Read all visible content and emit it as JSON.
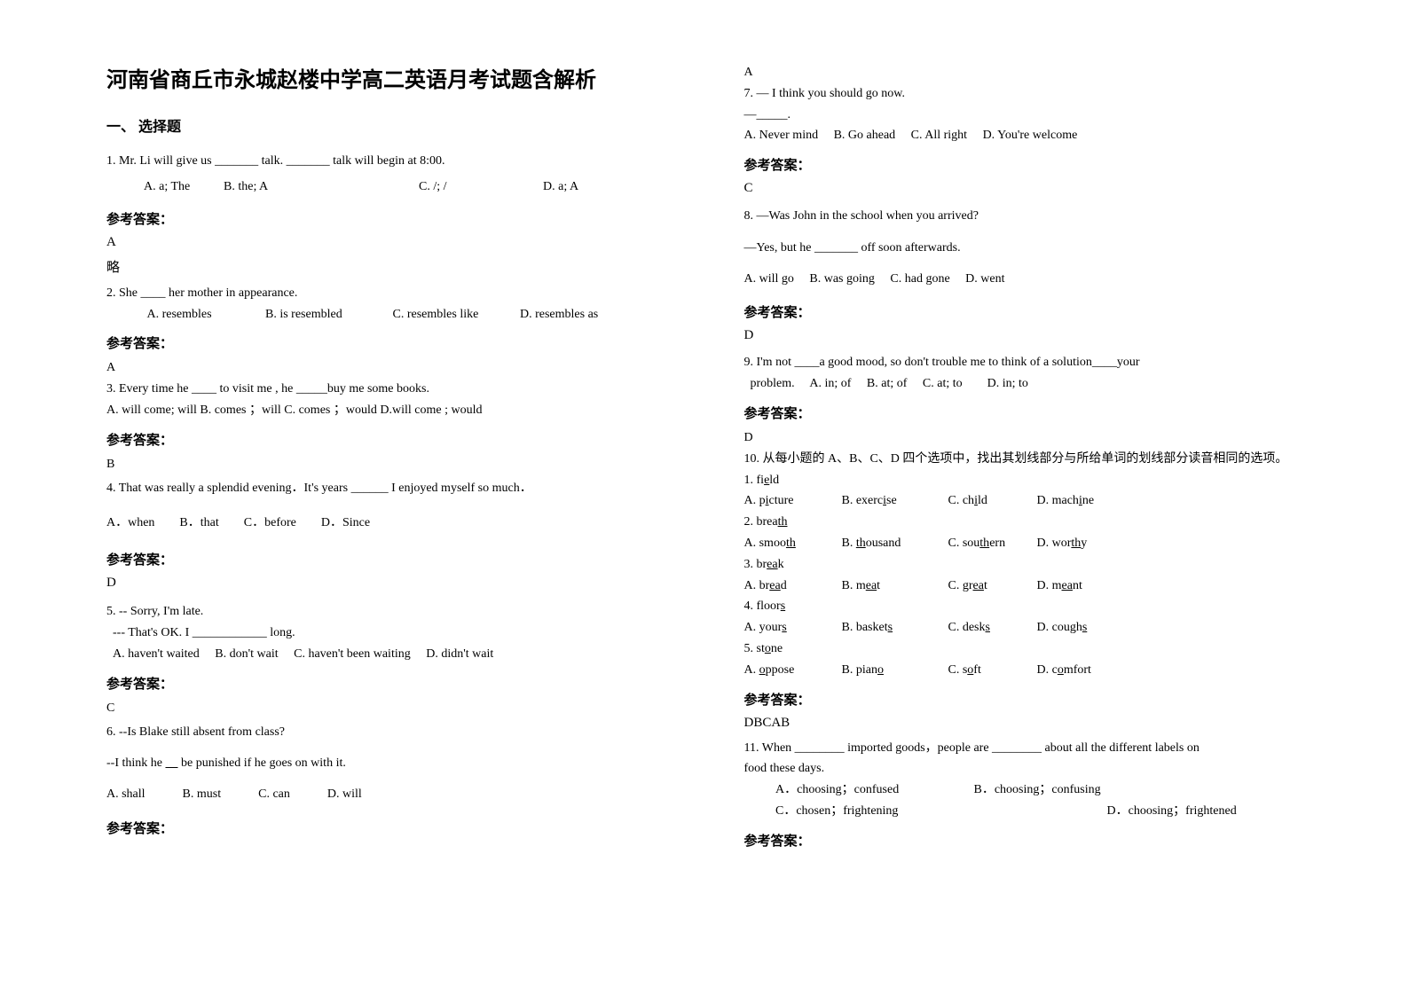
{
  "title": "河南省商丘市永城赵楼中学高二英语月考试题含解析",
  "sectionHead": "一、 选择题",
  "answerLabel": "参考答案：",
  "omit": "略",
  "q1": {
    "text": "1. Mr. Li will give us _______ talk. _______ talk will begin at 8:00.",
    "a": "A. a; The",
    "b": "B. the; A",
    "c": "C. /; /",
    "d": "D. a; A",
    "ans": "A"
  },
  "q2": {
    "text": "2. She ____ her mother in appearance.",
    "a": "A. resembles",
    "b": "B. is resembled",
    "c": "C. resembles like",
    "d": "D. resembles as",
    "ans": "A"
  },
  "q3": {
    "text": "3. Every time he ____ to visit me , he _____buy me some books.",
    "opts": "A. will come; will B. comes ；will C. comes ；would D.will come ; would",
    "ans": "B"
  },
  "q4": {
    "text": "4. That was really a splendid evening．It's years ______ I enjoyed myself so much．",
    "opts": "A．when　　B．that　　C．before　　D．Since",
    "ans": "D"
  },
  "q5": {
    "l1": "5. -- Sorry, I'm late.",
    "l2": "--- That's OK. I ____________ long.",
    "opts": "A. haven't waited　 B. don't wait　 C. haven't been waiting　 D. didn't wait",
    "ans": "C"
  },
  "q6": {
    "text": "6.  --Is Blake still absent from class?",
    "l2": "--I think he ____ be punished if he goes on with it.",
    "opts": "A. shall　　　B. must　　　C. can　　　D. will",
    "ans": "A"
  },
  "q7": {
    "l1": "7. — I think you should go now.",
    "l2": "—_____.",
    "opts": "A. Never mind　 B. Go ahead　 C. All right　 D. You're welcome",
    "ans": "C"
  },
  "q8": {
    "l1": "8. —Was John in the school when you arrived?",
    "l2": "—Yes, but he _______ off soon afterwards.",
    "opts": "A. will go　 B. was going　 C. had gone　 D. went",
    "ans": "D"
  },
  "q9": {
    "l1": "9. I'm not ____a good mood, so don't trouble me to think of a solution____your",
    "l2": "problem.　 A. in; of　 B. at; of　 C. at; to　　D. in; to",
    "ans": "D"
  },
  "q10": {
    "head": "10. 从每小题的 A、B、C、D 四个选项中，找出其划线部分与所给单词的划线部分读音相同的选项。",
    "items": [
      {
        "word_pre": "1. fi",
        "word_u": "e",
        "word_post": "ld",
        "a_pre": "A. p",
        "a_u": "i",
        "a_post": "cture",
        "b_pre": "B. exerc",
        "b_u": "i",
        "b_post": "se",
        "c_pre": "C. ch",
        "c_u": "i",
        "c_post": "ld",
        "d_pre": "D. mach",
        "d_u": "i",
        "d_post": "ne"
      },
      {
        "word_pre": "2. brea",
        "word_u": "th",
        "word_post": "",
        "a_pre": "A. smoo",
        "a_u": "th",
        "a_post": "",
        "b_pre": "B. ",
        "b_u": "th",
        "b_post": "ousand",
        "c_pre": "C. sou",
        "c_u": "th",
        "c_post": "ern",
        "d_pre": "D. wor",
        "d_u": "th",
        "d_post": "y"
      },
      {
        "word_pre": "3. br",
        "word_u": "ea",
        "word_post": "k",
        "a_pre": "A. br",
        "a_u": "ea",
        "a_post": "d",
        "b_pre": "B. m",
        "b_u": "ea",
        "b_post": "t",
        "c_pre": "C. gr",
        "c_u": "ea",
        "c_post": "t",
        "d_pre": "D. m",
        "d_u": "ea",
        "d_post": "nt"
      },
      {
        "word_pre": "4. floor",
        "word_u": "s",
        "word_post": "",
        "a_pre": "A. your",
        "a_u": "s",
        "a_post": "",
        "b_pre": "B. basket",
        "b_u": "s",
        "b_post": "",
        "c_pre": "C. desk",
        "c_u": "s",
        "c_post": "",
        "d_pre": "D. cough",
        "d_u": "s",
        "d_post": ""
      },
      {
        "word_pre": "5. st",
        "word_u": "o",
        "word_post": "ne",
        "a_pre": "A. ",
        "a_u": "o",
        "a_post": "ppose",
        "b_pre": "B. pian",
        "b_u": "o",
        "b_post": "",
        "c_pre": "C. s",
        "c_u": "o",
        "c_post": "ft",
        "d_pre": "D. c",
        "d_u": "o",
        "d_post": "mfort"
      }
    ],
    "ans": "DBCAB"
  },
  "q11": {
    "l1": "11. When ________ imported goods，people are ________ about all the different labels on",
    "l2": "food these days.",
    "a": "A．choosing；confused",
    "b": "B．choosing；confusing",
    "c": "C．chosen；frightening",
    "d": "D．choosing；frightened"
  }
}
